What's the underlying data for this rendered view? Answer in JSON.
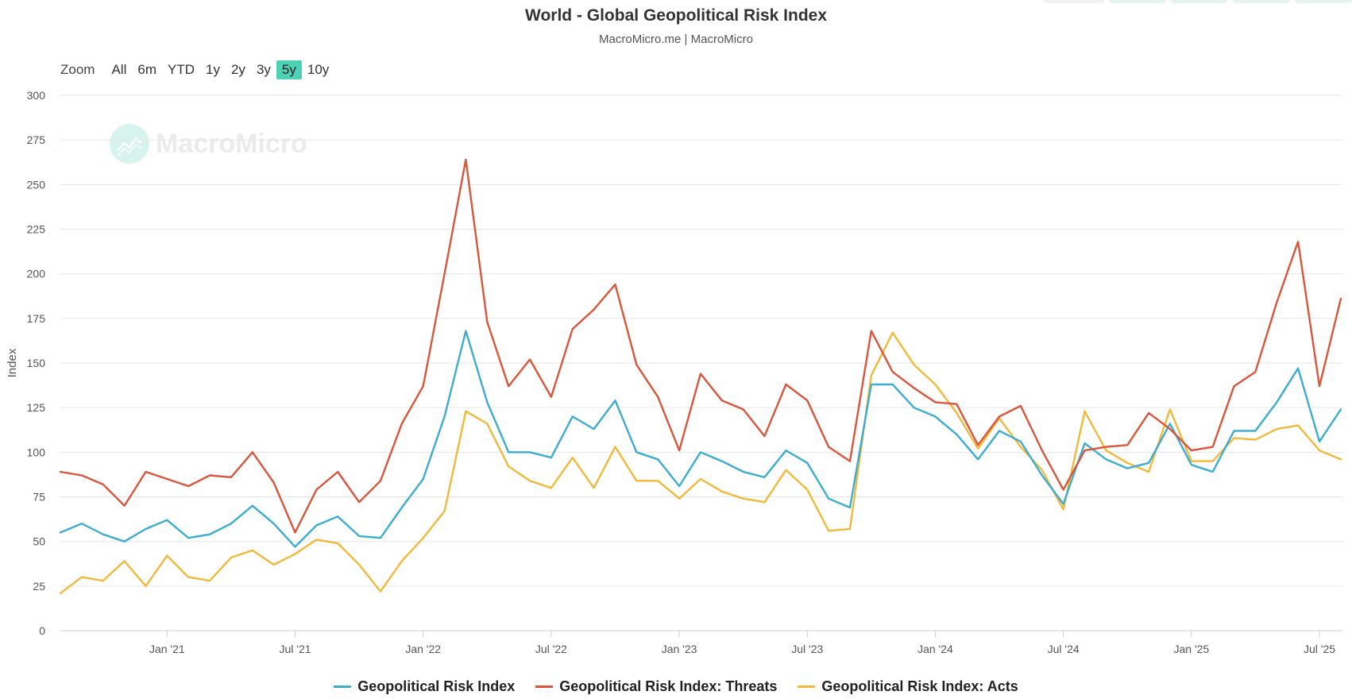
{
  "header": {
    "title": "World - Global Geopolitical Risk Index",
    "subtitle": "MacroMicro.me | MacroMicro"
  },
  "watermark": {
    "text": "MacroMicro"
  },
  "range_selector": {
    "zoom_label": "Zoom",
    "buttons": [
      "All",
      "6m",
      "YTD",
      "1y",
      "2y",
      "3y",
      "5y",
      "10y"
    ],
    "active": "5y"
  },
  "colors": {
    "gpr": "#3daccf",
    "threats": "#d9553b",
    "acts": "#f0b93c",
    "accent": "#4fd1b6"
  },
  "chart_data": {
    "type": "line",
    "title": "World - Global Geopolitical Risk Index",
    "ylabel": "Index",
    "ylim": [
      0,
      300
    ],
    "yticks": [
      0,
      25,
      50,
      75,
      100,
      125,
      150,
      175,
      200,
      225,
      250,
      275,
      300
    ],
    "grid": true,
    "legend_position": "bottom",
    "xtick_labels": [
      {
        "label": "Jan '21",
        "date": "2021-01-01"
      },
      {
        "label": "Jul '21",
        "date": "2021-07-01"
      },
      {
        "label": "Jan '22",
        "date": "2022-01-01"
      },
      {
        "label": "Jul '22",
        "date": "2022-07-01"
      },
      {
        "label": "Jan '23",
        "date": "2023-01-01"
      },
      {
        "label": "Jul '23",
        "date": "2023-07-01"
      },
      {
        "label": "Jan '24",
        "date": "2024-01-01"
      },
      {
        "label": "Jul '24",
        "date": "2024-07-01"
      },
      {
        "label": "Jan '25",
        "date": "2025-01-01"
      },
      {
        "label": "Jul '25",
        "date": "2025-07-01"
      }
    ],
    "x": [
      "2020-08",
      "2020-09",
      "2020-10",
      "2020-11",
      "2020-12",
      "2021-01",
      "2021-02",
      "2021-03",
      "2021-04",
      "2021-05",
      "2021-06",
      "2021-07",
      "2021-08",
      "2021-09",
      "2021-10",
      "2021-11",
      "2021-12",
      "2022-01",
      "2022-02",
      "2022-03",
      "2022-04",
      "2022-05",
      "2022-06",
      "2022-07",
      "2022-08",
      "2022-09",
      "2022-10",
      "2022-11",
      "2022-12",
      "2023-01",
      "2023-02",
      "2023-03",
      "2023-04",
      "2023-05",
      "2023-06",
      "2023-07",
      "2023-08",
      "2023-09",
      "2023-10",
      "2023-11",
      "2023-12",
      "2024-01",
      "2024-02",
      "2024-03",
      "2024-04",
      "2024-05",
      "2024-06",
      "2024-07",
      "2024-08",
      "2024-09",
      "2024-10",
      "2024-11",
      "2024-12",
      "2025-01",
      "2025-02",
      "2025-03",
      "2025-04",
      "2025-05",
      "2025-06",
      "2025-07",
      "2025-08"
    ],
    "series": [
      {
        "name": "Geopolitical Risk Index",
        "key": "gpr",
        "values": [
          55,
          60,
          54,
          50,
          57,
          62,
          52,
          54,
          60,
          70,
          60,
          47,
          59,
          64,
          53,
          52,
          69,
          85,
          120,
          168,
          128,
          100,
          100,
          97,
          120,
          113,
          129,
          100,
          96,
          81,
          100,
          95,
          89,
          86,
          101,
          94,
          74,
          69,
          138,
          138,
          125,
          120,
          110,
          96,
          112,
          106,
          87,
          71,
          105,
          96,
          91,
          94,
          116,
          93,
          89,
          112,
          112,
          128,
          147,
          106,
          124
        ]
      },
      {
        "name": "Geopolitical Risk Index: Threats",
        "key": "threats",
        "values": [
          89,
          87,
          82,
          70,
          89,
          85,
          81,
          87,
          86,
          100,
          83,
          55,
          79,
          89,
          72,
          84,
          116,
          137,
          200,
          264,
          173,
          137,
          152,
          131,
          169,
          180,
          194,
          149,
          131,
          101,
          144,
          129,
          124,
          109,
          138,
          129,
          103,
          95,
          168,
          145,
          136,
          128,
          127,
          104,
          120,
          126,
          101,
          79,
          101,
          103,
          104,
          122,
          113,
          101,
          103,
          137,
          145,
          184,
          218,
          137,
          186
        ]
      },
      {
        "name": "Geopolitical Risk Index: Acts",
        "key": "acts",
        "values": [
          21,
          30,
          28,
          39,
          25,
          42,
          30,
          28,
          41,
          45,
          37,
          43,
          51,
          49,
          37,
          22,
          39,
          52,
          67,
          123,
          116,
          92,
          84,
          80,
          97,
          80,
          103,
          84,
          84,
          74,
          85,
          78,
          74,
          72,
          90,
          79,
          56,
          57,
          143,
          167,
          149,
          138,
          122,
          102,
          119,
          103,
          90,
          68,
          123,
          101,
          94,
          89,
          124,
          95,
          95,
          108,
          107,
          113,
          115,
          101,
          96
        ]
      }
    ]
  }
}
